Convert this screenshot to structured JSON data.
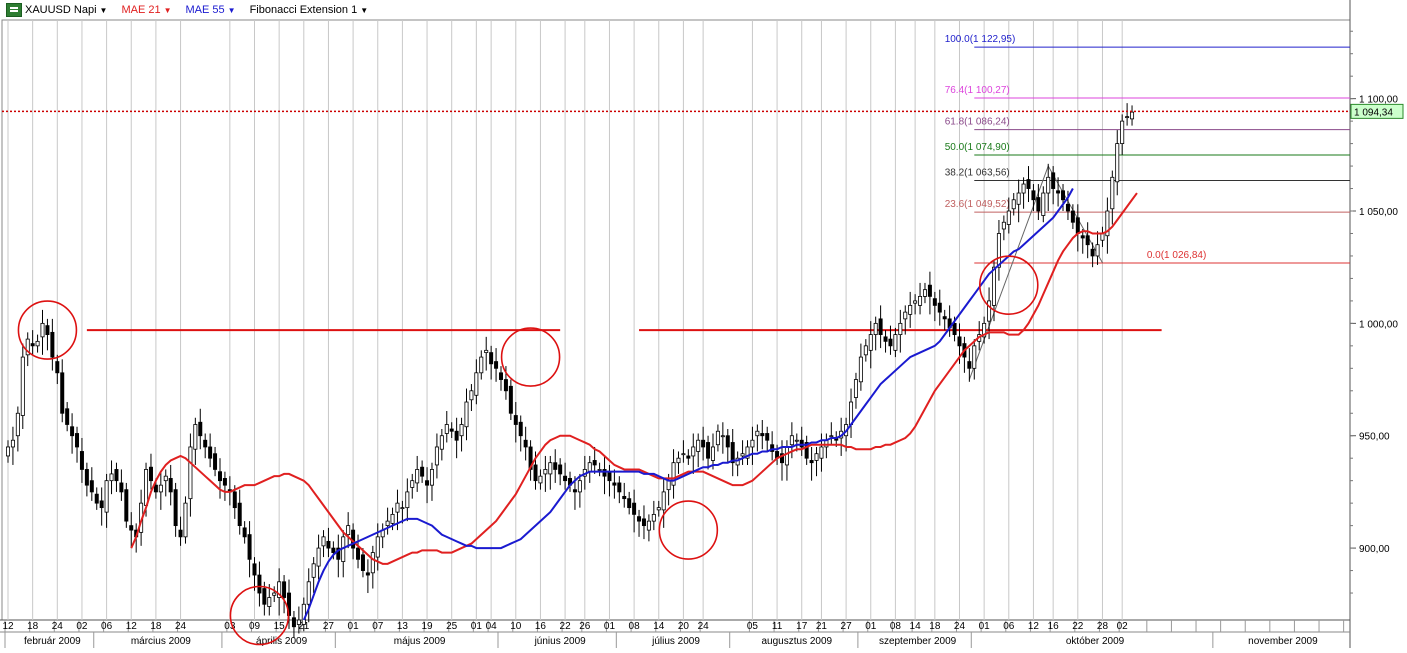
{
  "legend": {
    "symbol": "XAUUSD Napi",
    "mae21": "MAE 21",
    "mae55": "MAE 55",
    "fib": "Fibonacci Extension 1",
    "caret": "▼"
  },
  "colors": {
    "bull_fill": "#ffffff",
    "bear_fill": "#000000",
    "mae21": "#e02020",
    "mae55": "#1a1ad0",
    "grid": "#c8c8c8",
    "annotation": "#dd1111",
    "price_line": "#cc0000"
  },
  "chart_data": {
    "type": "candlestick",
    "title": "XAUUSD Napi",
    "ylim": [
      868,
      1135
    ],
    "y_ticks": [
      {
        "value": 900,
        "label": "900,00"
      },
      {
        "value": 950,
        "label": "950,00"
      },
      {
        "value": 1000,
        "label": "1 000,00"
      },
      {
        "value": 1050,
        "label": "1 050,00"
      },
      {
        "value": 1100,
        "label": "1 100,00"
      }
    ],
    "current_price": {
      "value": 1094.34,
      "label": "1 094,34"
    },
    "x_day_ticks": [
      "12",
      "18",
      "24",
      "02",
      "06",
      "12",
      "18",
      "24",
      "03",
      "09",
      "15",
      "21",
      "27",
      "01",
      "07",
      "13",
      "19",
      "25",
      "01",
      "04",
      "10",
      "16",
      "22",
      "26",
      "01",
      "08",
      "14",
      "20",
      "24",
      "05",
      "11",
      "17",
      "21",
      "27",
      "01",
      "08",
      "14",
      "18",
      "24",
      "01",
      "06",
      "12",
      "16",
      "22",
      "28",
      "02"
    ],
    "x_day_tick_index": [
      0,
      5,
      10,
      15,
      20,
      25,
      30,
      35,
      45,
      50,
      55,
      60,
      65,
      70,
      75,
      80,
      85,
      90,
      95,
      98,
      103,
      108,
      113,
      117,
      122,
      127,
      132,
      137,
      141,
      151,
      156,
      161,
      165,
      170,
      175,
      180,
      184,
      188,
      193,
      198,
      203,
      208,
      212,
      217,
      222,
      226
    ],
    "months": [
      {
        "label": "február 2009",
        "index": 0
      },
      {
        "label": "március 2009",
        "index": 18
      },
      {
        "label": "április 2009",
        "index": 44
      },
      {
        "label": "május 2009",
        "index": 67
      },
      {
        "label": "június 2009",
        "index": 100
      },
      {
        "label": "július 2009",
        "index": 124
      },
      {
        "label": "augusztus 2009",
        "index": 147
      },
      {
        "label": "szeptember 2009",
        "index": 173
      },
      {
        "label": "október 2009",
        "index": 196
      },
      {
        "label": "november 2009",
        "index": 245
      }
    ],
    "closes": [
      945,
      948,
      960,
      985,
      993,
      990,
      992,
      1000,
      995,
      985,
      978,
      960,
      955,
      950,
      945,
      935,
      928,
      925,
      920,
      918,
      930,
      933,
      930,
      925,
      912,
      908,
      905,
      920,
      935,
      930,
      925,
      928,
      932,
      925,
      910,
      905,
      920,
      945,
      955,
      950,
      945,
      940,
      935,
      930,
      928,
      925,
      918,
      910,
      905,
      895,
      888,
      880,
      875,
      878,
      880,
      885,
      878,
      870,
      865,
      868,
      875,
      885,
      893,
      900,
      905,
      900,
      898,
      895,
      905,
      910,
      900,
      895,
      890,
      888,
      898,
      905,
      908,
      912,
      915,
      920,
      918,
      925,
      930,
      935,
      932,
      928,
      935,
      945,
      950,
      955,
      952,
      948,
      955,
      965,
      970,
      978,
      985,
      988,
      982,
      980,
      975,
      970,
      960,
      955,
      950,
      945,
      935,
      930,
      932,
      935,
      938,
      935,
      933,
      930,
      928,
      925,
      930,
      935,
      938,
      937,
      935,
      932,
      930,
      928,
      925,
      922,
      918,
      915,
      912,
      910,
      912,
      915,
      918,
      925,
      930,
      938,
      940,
      942,
      940,
      945,
      948,
      945,
      940,
      945,
      952,
      950,
      945,
      938,
      940,
      942,
      945,
      948,
      952,
      950,
      948,
      943,
      940,
      938,
      945,
      950,
      948,
      945,
      940,
      938,
      942,
      945,
      948,
      950,
      948,
      952,
      955,
      965,
      975,
      985,
      990,
      995,
      1000,
      995,
      992,
      990,
      995,
      1000,
      1005,
      1008,
      1010,
      1012,
      1015,
      1012,
      1008,
      1005,
      1002,
      998,
      995,
      990,
      985,
      980,
      990,
      995,
      1000,
      1010,
      1025,
      1040,
      1045,
      1050,
      1055,
      1058,
      1062,
      1060,
      1055,
      1050,
      1058,
      1065,
      1060,
      1058,
      1055,
      1050,
      1045,
      1040,
      1038,
      1035,
      1030,
      1035,
      1040,
      1050,
      1065,
      1080,
      1090,
      1092,
      1094
    ],
    "series": [
      {
        "name": "MAE 21",
        "values": [
          900,
          905,
          912,
          918,
          925,
          930,
          934,
          937,
          939,
          940,
          941,
          940,
          938,
          936,
          934,
          932,
          930,
          928,
          926,
          925,
          925,
          926,
          927,
          928,
          928,
          928,
          929,
          930,
          931,
          932,
          932,
          933,
          933,
          932,
          931,
          930,
          928,
          925,
          922,
          919,
          916,
          913,
          910,
          907,
          905,
          903,
          901,
          899,
          897,
          895,
          894,
          893,
          893,
          894,
          895,
          896,
          897,
          898,
          898,
          899,
          899,
          899,
          899,
          898,
          898,
          898,
          899,
          900,
          901,
          902,
          904,
          906,
          908,
          910,
          912,
          915,
          918,
          921,
          924,
          928,
          932,
          936,
          940,
          943,
          946,
          948,
          949,
          950,
          950,
          950,
          949,
          948,
          947,
          946,
          944,
          943,
          941,
          939,
          937,
          936,
          935,
          935,
          935,
          935,
          934,
          933,
          932,
          931,
          931,
          931,
          931,
          932,
          933,
          934,
          934,
          934,
          934,
          933,
          932,
          931,
          930,
          929,
          928,
          928,
          928,
          929,
          930,
          932,
          934,
          936,
          938,
          940,
          941,
          942,
          943,
          944,
          944,
          945,
          946,
          946,
          946,
          946,
          946,
          946,
          946,
          945,
          945,
          944,
          944,
          944,
          944,
          945,
          945,
          946,
          946,
          947,
          948,
          949,
          951,
          954,
          958,
          962,
          966,
          970,
          973,
          976,
          979,
          982,
          985,
          988,
          990,
          992,
          994,
          995,
          996,
          996,
          996,
          996,
          995,
          995,
          995,
          997,
          1000,
          1004,
          1008,
          1013,
          1018,
          1023,
          1028,
          1032,
          1035,
          1038,
          1040,
          1041,
          1041,
          1040,
          1040,
          1040,
          1041,
          1043,
          1046,
          1049,
          1052,
          1055,
          1058
        ],
        "start": 25
      },
      {
        "name": "MAE 55",
        "values": [
          868,
          873,
          879,
          885,
          890,
          894,
          897,
          899,
          900,
          901,
          902,
          903,
          904,
          905,
          906,
          907,
          908,
          909,
          910,
          911,
          912,
          913,
          913,
          913,
          912,
          911,
          910,
          908,
          906,
          905,
          904,
          903,
          902,
          901,
          901,
          900,
          900,
          900,
          900,
          900,
          900,
          901,
          902,
          903,
          904,
          906,
          908,
          910,
          912,
          914,
          916,
          919,
          922,
          925,
          928,
          930,
          932,
          933,
          934,
          934,
          934,
          934,
          934,
          934,
          934,
          934,
          934,
          934,
          934,
          933,
          933,
          933,
          932,
          931,
          930,
          930,
          931,
          932,
          933,
          934,
          935,
          936,
          936,
          937,
          937,
          938,
          938,
          939,
          939,
          940,
          941,
          942,
          942,
          943,
          943,
          944,
          944,
          945,
          945,
          945,
          946,
          946,
          946,
          947,
          947,
          948,
          948,
          949,
          949,
          950,
          952,
          955,
          958,
          961,
          964,
          967,
          970,
          973,
          975,
          977,
          979,
          981,
          983,
          985,
          986,
          987,
          988,
          989,
          990,
          992,
          995,
          998,
          1001,
          1004,
          1007,
          1010,
          1013,
          1016,
          1019,
          1022,
          1024,
          1026,
          1028,
          1030,
          1032,
          1033,
          1035,
          1037,
          1039,
          1041,
          1043,
          1045,
          1047,
          1050,
          1053,
          1056,
          1060
        ],
        "start": 60
      }
    ],
    "fibonacci": [
      {
        "level": "100.0",
        "price": 1122.95,
        "label": "100.0(1 122,95)",
        "color": "#2222cc"
      },
      {
        "level": "76.4",
        "price": 1100.27,
        "label": "76.4(1 100,27)",
        "color": "#dd44dd"
      },
      {
        "level": "61.8",
        "price": 1086.24,
        "label": "61.8(1 086,24)",
        "color": "#8a4a8a"
      },
      {
        "level": "50.0",
        "price": 1074.9,
        "label": "50.0(1 074,90)",
        "color": "#1a7a1a"
      },
      {
        "level": "38.2",
        "price": 1063.56,
        "label": "38.2(1 063,56)",
        "color": "#333333"
      },
      {
        "level": "23.6",
        "price": 1049.52,
        "label": "23.6(1 049,52)",
        "color": "#c06060"
      },
      {
        "level": "0.0",
        "price": 1026.84,
        "label": "0.0(1 026,84)",
        "color": "#dd3333"
      }
    ],
    "resistance": [
      {
        "from": 16,
        "to": 112,
        "price": 997
      },
      {
        "from": 128,
        "to": 234,
        "price": 997
      }
    ],
    "circles": [
      {
        "index": 8,
        "price": 997
      },
      {
        "index": 106,
        "price": 985
      },
      {
        "index": 51,
        "price": 870
      },
      {
        "index": 138,
        "price": 908
      },
      {
        "index": 203,
        "price": 1017
      }
    ]
  }
}
